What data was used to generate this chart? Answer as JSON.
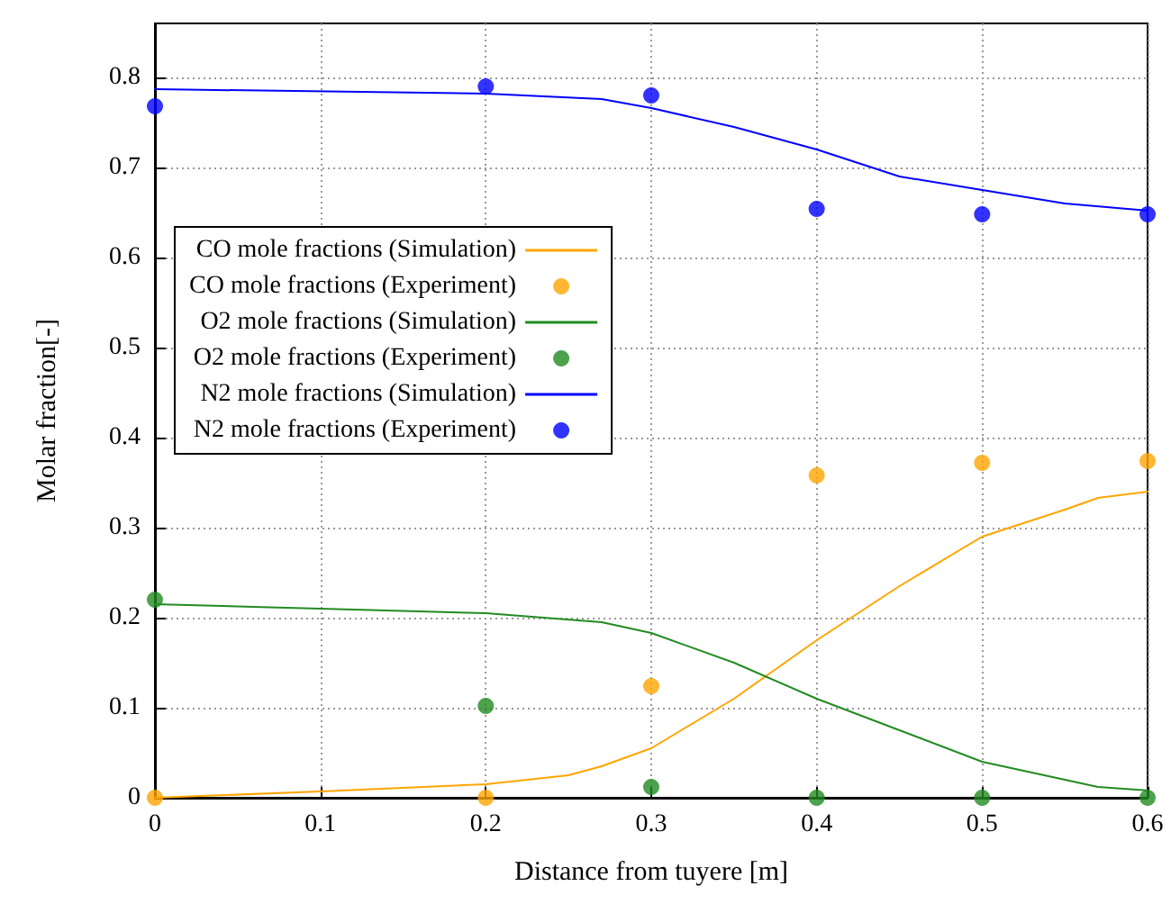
{
  "chart_data": {
    "type": "line",
    "xlabel": "Distance from tuyere [m]",
    "ylabel": "Molar fraction[-]",
    "xlim": [
      0,
      0.6
    ],
    "xticks": [
      0,
      0.1,
      0.2,
      0.3,
      0.4,
      0.5,
      0.6
    ],
    "ylim": [
      0,
      0.86
    ],
    "yticks": [
      0,
      0.1,
      0.2,
      0.3,
      0.4,
      0.5,
      0.6,
      0.7,
      0.8
    ],
    "grid": true,
    "legend": "left",
    "line_style": "solid",
    "series": [
      {
        "name": "CO mole fractions (Simulation)",
        "marker": "none",
        "color": "#ffa500",
        "x": [
          0,
          0.1,
          0.2,
          0.25,
          0.27,
          0.3,
          0.35,
          0.4,
          0.45,
          0.5,
          0.55,
          0.57,
          0.6
        ],
        "values": [
          0,
          0.007,
          0.015,
          0.025,
          0.035,
          0.055,
          0.11,
          0.175,
          0.235,
          0.29,
          0.32,
          0.333,
          0.34
        ]
      },
      {
        "name": "CO mole fractions (Experiment)",
        "type": "scatter",
        "marker": "circle",
        "color": "#ffa500",
        "x": [
          0,
          0.2,
          0.3,
          0.4,
          0.5,
          0.6
        ],
        "values": [
          0,
          0,
          0.124,
          0.358,
          0.372,
          0.374
        ]
      },
      {
        "name": "O2 mole fractions (Simulation)",
        "marker": "none",
        "color": "#228b22",
        "x": [
          0,
          0.1,
          0.2,
          0.27,
          0.3,
          0.35,
          0.4,
          0.45,
          0.5,
          0.55,
          0.57,
          0.6
        ],
        "values": [
          0.215,
          0.21,
          0.205,
          0.195,
          0.183,
          0.15,
          0.11,
          0.075,
          0.04,
          0.02,
          0.012,
          0.008
        ]
      },
      {
        "name": "O2 mole fractions (Experiment)",
        "type": "scatter",
        "marker": "circle",
        "color": "#228b22",
        "x": [
          0,
          0.2,
          0.3,
          0.4,
          0.5,
          0.6
        ],
        "values": [
          0.22,
          0.102,
          0.012,
          0,
          0,
          0
        ]
      },
      {
        "name": "N2 mole fractions (Simulation)",
        "marker": "none",
        "color": "#0000ff",
        "x": [
          0,
          0.2,
          0.27,
          0.3,
          0.35,
          0.4,
          0.45,
          0.5,
          0.55,
          0.6
        ],
        "values": [
          0.787,
          0.782,
          0.776,
          0.766,
          0.745,
          0.72,
          0.69,
          0.675,
          0.66,
          0.652
        ]
      },
      {
        "name": "N2 mole fractions (Experiment)",
        "type": "scatter",
        "marker": "circle",
        "color": "#0000ff",
        "x": [
          0,
          0.2,
          0.3,
          0.4,
          0.5,
          0.6
        ],
        "values": [
          0.768,
          0.79,
          0.78,
          0.654,
          0.648,
          0.648
        ]
      }
    ]
  }
}
